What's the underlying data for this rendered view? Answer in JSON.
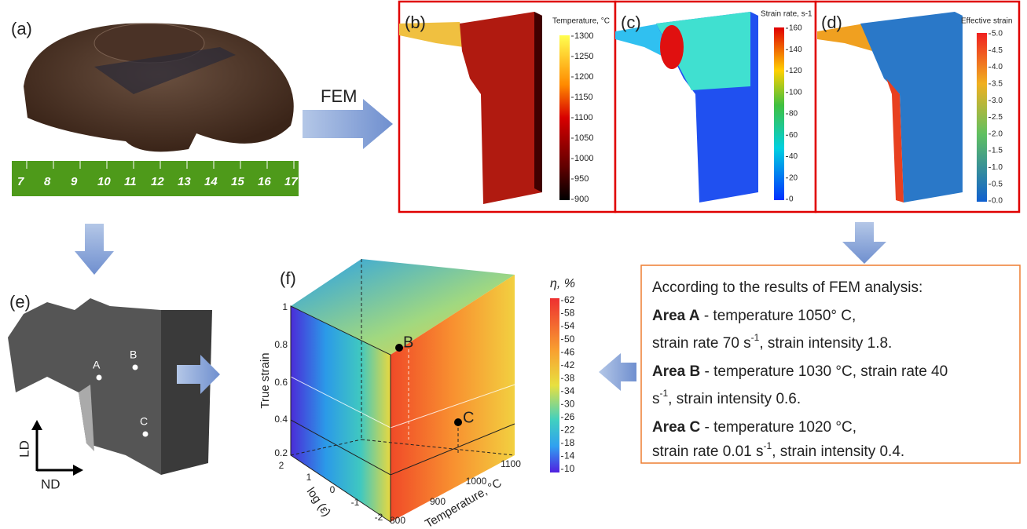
{
  "panels": {
    "a": {
      "label": "(a)",
      "ruler_numbers": [
        "7",
        "8",
        "9",
        "10",
        "11",
        "12",
        "13",
        "14",
        "15",
        "16",
        "17"
      ]
    },
    "fem_arrow": "FEM",
    "b": {
      "label": "(b)",
      "colorbar_title": "Temperature, °C",
      "ticks": [
        "1300",
        "1250",
        "1200",
        "1150",
        "1100",
        "1050",
        "1000",
        "950",
        "900"
      ]
    },
    "c": {
      "label": "(c)",
      "colorbar_title": "Strain rate, s-1",
      "ticks": [
        "160",
        "140",
        "120",
        "100",
        "80",
        "60",
        "40",
        "20",
        "0"
      ]
    },
    "d": {
      "label": "(d)",
      "colorbar_title": "Effective strain",
      "ticks": [
        "5.0",
        "4.5",
        "4.0",
        "3.5",
        "3.0",
        "2.5",
        "2.0",
        "1.5",
        "1.0",
        "0.5",
        "0.0"
      ]
    },
    "e": {
      "label": "(e)",
      "points": [
        "A",
        "B",
        "C"
      ],
      "axis_vertical": "LD",
      "axis_horizontal": "ND"
    },
    "f": {
      "label": "(f)",
      "z_axis_title": "True strain",
      "z_ticks": [
        "1",
        "0.8",
        "0.6",
        "0.4",
        "0.2"
      ],
      "log_axis_title": "log (ε̇)",
      "log_ticks": [
        "2",
        "1",
        "0",
        "-1",
        "-2"
      ],
      "temp_axis_title": "Temperature, °C",
      "temp_ticks": [
        "800",
        "900",
        "1000",
        "1100"
      ],
      "points": [
        "B",
        "C"
      ],
      "colorbar_title": "η, %",
      "colorbar_ticks": [
        "62",
        "58",
        "54",
        "50",
        "46",
        "42",
        "38",
        "34",
        "30",
        "26",
        "22",
        "18",
        "14",
        "10"
      ]
    }
  },
  "text_box": {
    "intro": "According to the results of FEM analysis:",
    "area_a": {
      "name": "Area A",
      "line1": " - temperature 1050° C,",
      "line2_before": "strain rate 70 s",
      "line2_sup": "-1",
      "line2_after": ", strain intensity 1.8."
    },
    "area_b": {
      "name": "Area B",
      "line1": " - temperature 1030 °C, strain rate 40",
      "line2_before": "s",
      "line2_sup": "-1",
      "line2_after": ", strain intensity 0.6."
    },
    "area_c": {
      "name": "Area C",
      "line1": " - temperature 1020 °C,",
      "line2_before": "strain rate 0.01 s",
      "line2_sup": "-1",
      "line2_after": ", strain intensity 0.4."
    }
  }
}
